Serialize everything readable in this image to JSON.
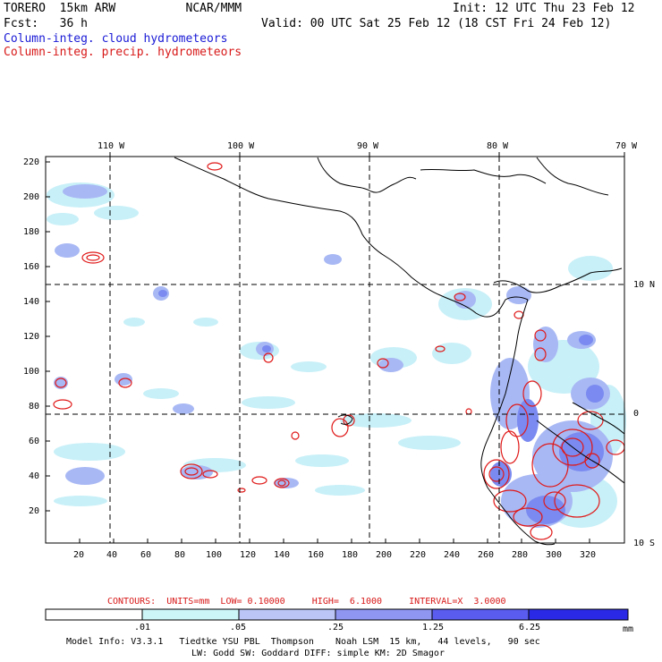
{
  "header": {
    "model_line": "TORERO  15km ARW          NCAR/MMM",
    "init_line": "Init: 12 UTC Thu 23 Feb 12",
    "fcst_line": "Fcst:   36 h",
    "valid_line": "Valid: 00 UTC Sat 25 Feb 12 (18 CST Fri 24 Feb 12)",
    "field1": "Column-integ. cloud hydrometeors",
    "field2": "Column-integ. precip. hydrometeors"
  },
  "map": {
    "top_lon_labels": [
      "110 W",
      "100 W",
      "90 W",
      "80 W",
      "70 W"
    ],
    "right_lat_labels": [
      "10 N",
      "0",
      "10 S"
    ],
    "left_ticks": [
      "220",
      "200",
      "180",
      "160",
      "140",
      "120",
      "100",
      "80",
      "60",
      "40",
      "20"
    ],
    "bottom_ticks": [
      "20",
      "40",
      "60",
      "80",
      "100",
      "120",
      "140",
      "160",
      "180",
      "200",
      "220",
      "240",
      "260",
      "280",
      "300",
      "320"
    ],
    "colors": {
      "cloud_light": "#c8f0f8",
      "cloud_mid": "#a8b8f4",
      "cloud_strong": "#7a8af0",
      "precip_contour": "#e01818",
      "coast": "#000000"
    }
  },
  "contour_info": "CONTOURS:  UNITS=mm  LOW= 0.10000     HIGH=  6.1000     INTERVAL=X  3.0000",
  "colorbar": {
    "labels": [
      ".01",
      ".05",
      ".25",
      "1.25",
      "6.25"
    ],
    "units": "mm",
    "colors": [
      "#ffffff",
      "#ccf5f8",
      "#bcc6f6",
      "#8e96f2",
      "#5a5cf0",
      "#2a2ae6",
      "#1414d8"
    ]
  },
  "footer": {
    "line1": "Model Info: V3.3.1   Tiedtke YSU PBL  Thompson    Noah LSM  15 km,   44 levels,   90 sec",
    "line2": "LW: Godd SW: Goddard DIFF: simple KM: 2D Smagor"
  }
}
